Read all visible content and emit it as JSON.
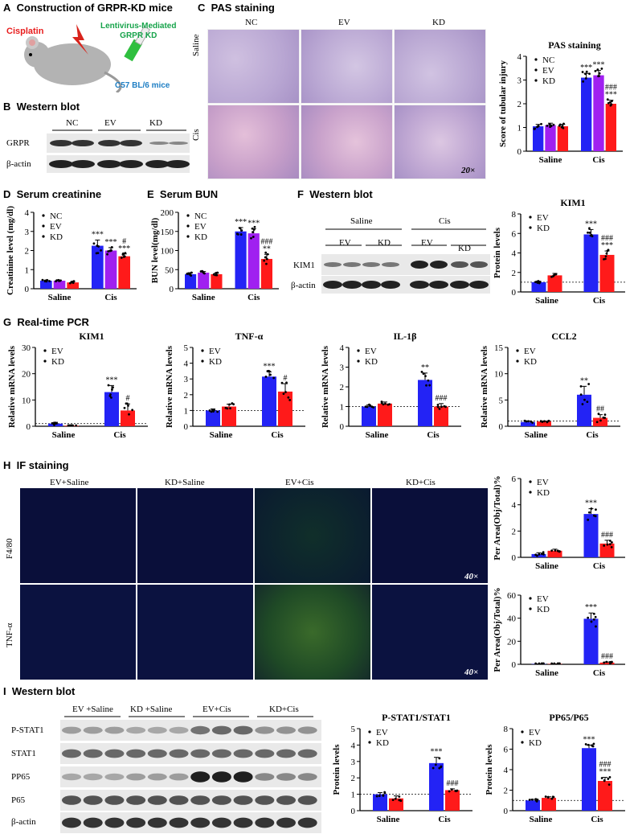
{
  "panelA": {
    "letter": "A",
    "title": "Construction of GRPR-KD mice",
    "cisplatin": "Cisplatin",
    "lenti_line1": "Lentivirus-Mediated",
    "lenti_line2": "GRPR KD",
    "mice": "C57 BL/6 mice"
  },
  "panelB": {
    "letter": "B",
    "title": "Western blot",
    "groups": [
      "NC",
      "EV",
      "KD"
    ],
    "rows": [
      "GRPR",
      "β-actin"
    ]
  },
  "panelC": {
    "letter": "C",
    "title": "PAS staining",
    "cols": [
      "NC",
      "EV",
      "KD"
    ],
    "rows": [
      "Saline",
      "Cis"
    ],
    "magnification": "20×"
  },
  "panelD": {
    "letter": "D",
    "title": "Serum creatinine"
  },
  "panelE": {
    "letter": "E",
    "title": "Serum BUN"
  },
  "panelF": {
    "letter": "F",
    "title": "Western blot",
    "treatments": [
      "Saline",
      "Cis"
    ],
    "groups": [
      "EV",
      "KD",
      "EV",
      "KD"
    ],
    "rows": [
      "KIM1",
      "β-actin"
    ]
  },
  "panelG": {
    "letter": "G",
    "title": "Real-time PCR"
  },
  "panelH": {
    "letter": "H",
    "title": "IF staining",
    "cols": [
      "EV+Saline",
      "KD+Saline",
      "EV+Cis",
      "KD+Cis"
    ],
    "rows": [
      "F4/80",
      "TNF-α"
    ],
    "magnification": "40×"
  },
  "panelI": {
    "letter": "I",
    "title": "Western blot",
    "groups": [
      "EV +Saline",
      "KD +Saline",
      "EV+Cis",
      "KD+Cis"
    ],
    "rows": [
      "P-STAT1",
      "STAT1",
      "PP65",
      "P65",
      "β-actin"
    ]
  },
  "colors": {
    "NC": "#2323f5",
    "EV": "#2323f5",
    "EV_purple": "#a020f0",
    "KD": "#ff1a1a",
    "panelA_title": "#000000",
    "cisplatin": "#e81c1c",
    "lenti": "#16a34a",
    "mice": "#1f7fc4"
  },
  "chart_data": [
    {
      "id": "pas",
      "type": "bar",
      "title": "PAS staining",
      "xlabel": "",
      "ylabel": "Score of tubular injury",
      "categories": [
        "Saline",
        "Cis"
      ],
      "ylim": [
        0,
        4
      ],
      "yticks": [
        0,
        1,
        2,
        3,
        4
      ],
      "series": [
        {
          "name": "NC",
          "values": [
            1.05,
            3.1
          ],
          "err": [
            0.08,
            0.18
          ],
          "color": "#2323f5"
        },
        {
          "name": "EV",
          "values": [
            1.1,
            3.2
          ],
          "err": [
            0.08,
            0.2
          ],
          "color": "#a020f0"
        },
        {
          "name": "KD",
          "values": [
            1.05,
            2.0
          ],
          "err": [
            0.08,
            0.15
          ],
          "color": "#ff1a1a"
        }
      ],
      "annotations": [
        [
          "***"
        ],
        [
          "***"
        ],
        [
          "###",
          "***"
        ]
      ],
      "baseline": null
    },
    {
      "id": "creat",
      "type": "bar",
      "title": "",
      "xlabel": "",
      "ylabel": "Creatinine level (mg/dl)",
      "categories": [
        "Saline",
        "Cis"
      ],
      "ylim": [
        0,
        4
      ],
      "yticks": [
        0,
        1,
        2,
        3,
        4
      ],
      "series": [
        {
          "name": "NC",
          "values": [
            0.42,
            2.25
          ],
          "err": [
            0.03,
            0.3
          ],
          "color": "#2323f5"
        },
        {
          "name": "EV",
          "values": [
            0.42,
            2.0
          ],
          "err": [
            0.03,
            0.15
          ],
          "color": "#a020f0"
        },
        {
          "name": "KD",
          "values": [
            0.33,
            1.7
          ],
          "err": [
            0.05,
            0.12
          ],
          "color": "#ff1a1a"
        }
      ],
      "annotations": [
        [
          "***"
        ],
        [
          "***"
        ],
        [
          "#",
          "***"
        ]
      ],
      "baseline": null
    },
    {
      "id": "bun",
      "type": "bar",
      "title": "",
      "xlabel": "",
      "ylabel": "BUN level(mg/dl)",
      "categories": [
        "Saline",
        "Cis"
      ],
      "ylim": [
        0,
        200
      ],
      "yticks": [
        0,
        50,
        100,
        150,
        200
      ],
      "series": [
        {
          "name": "NC",
          "values": [
            38,
            150
          ],
          "err": [
            4,
            10
          ],
          "color": "#2323f5"
        },
        {
          "name": "EV",
          "values": [
            42,
            145
          ],
          "err": [
            3,
            12
          ],
          "color": "#a020f0"
        },
        {
          "name": "KD",
          "values": [
            38,
            78
          ],
          "err": [
            3,
            12
          ],
          "color": "#ff1a1a"
        }
      ],
      "annotations": [
        [
          "***"
        ],
        [
          "***"
        ],
        [
          "###",
          "**"
        ]
      ],
      "baseline": null
    },
    {
      "id": "kim1wb",
      "type": "bar",
      "title": "KIM1",
      "xlabel": "",
      "ylabel": "Protein levels",
      "categories": [
        "Saline",
        "Cis"
      ],
      "ylim": [
        0,
        8
      ],
      "yticks": [
        0,
        2,
        4,
        6,
        8
      ],
      "series": [
        {
          "name": "EV",
          "values": [
            1.0,
            5.9
          ],
          "err": [
            0.1,
            0.5
          ],
          "color": "#2323f5"
        },
        {
          "name": "KD",
          "values": [
            1.7,
            3.8
          ],
          "err": [
            0.2,
            0.4
          ],
          "color": "#ff1a1a"
        }
      ],
      "annotations": [
        [
          "***"
        ],
        [
          "###",
          "***"
        ]
      ],
      "baseline": 1
    },
    {
      "id": "kim1pcr",
      "type": "bar",
      "title": "KIM1",
      "xlabel": "",
      "ylabel": "Relative mRNA levels",
      "categories": [
        "Saline",
        "Cis"
      ],
      "ylim": [
        0,
        30
      ],
      "yticks": [
        0,
        10,
        20,
        30
      ],
      "series": [
        {
          "name": "EV",
          "values": [
            1.0,
            13
          ],
          "err": [
            0.5,
            2.5
          ],
          "color": "#2323f5"
        },
        {
          "name": "KD",
          "values": [
            0.2,
            6
          ],
          "err": [
            0.1,
            2.5
          ],
          "color": "#ff1a1a"
        }
      ],
      "annotations": [
        [
          "***"
        ],
        [
          "#"
        ]
      ],
      "baseline": 1
    },
    {
      "id": "tnfpcr",
      "type": "bar",
      "title": "TNF-α",
      "xlabel": "",
      "ylabel": "Relative mRNA levels",
      "categories": [
        "Saline",
        "Cis"
      ],
      "ylim": [
        0,
        5
      ],
      "yticks": [
        0,
        1,
        2,
        3,
        4,
        5
      ],
      "series": [
        {
          "name": "EV",
          "values": [
            1.0,
            3.15
          ],
          "err": [
            0.1,
            0.3
          ],
          "color": "#2323f5"
        },
        {
          "name": "KD",
          "values": [
            1.25,
            2.2
          ],
          "err": [
            0.15,
            0.5
          ],
          "color": "#ff1a1a"
        }
      ],
      "annotations": [
        [
          "***"
        ],
        [
          "#"
        ]
      ],
      "baseline": 1
    },
    {
      "id": "il1b",
      "type": "bar",
      "title": "IL-1β",
      "xlabel": "",
      "ylabel": "Relative mRNA levels",
      "categories": [
        "Saline",
        "Cis"
      ],
      "ylim": [
        0,
        4
      ],
      "yticks": [
        0,
        1,
        2,
        3,
        4
      ],
      "series": [
        {
          "name": "EV",
          "values": [
            1.0,
            2.35
          ],
          "err": [
            0.08,
            0.35
          ],
          "color": "#2323f5"
        },
        {
          "name": "KD",
          "values": [
            1.15,
            1.0
          ],
          "err": [
            0.08,
            0.15
          ],
          "color": "#ff1a1a"
        }
      ],
      "annotations": [
        [
          "**"
        ],
        [
          "###"
        ]
      ],
      "baseline": 1
    },
    {
      "id": "ccl2",
      "type": "bar",
      "title": "CCL2",
      "xlabel": "",
      "ylabel": "Relative mRNA levels",
      "categories": [
        "Saline",
        "Cis"
      ],
      "ylim": [
        0,
        15
      ],
      "yticks": [
        0,
        5,
        10,
        15
      ],
      "series": [
        {
          "name": "EV",
          "values": [
            0.8,
            6.0
          ],
          "err": [
            0.2,
            1.6
          ],
          "color": "#2323f5"
        },
        {
          "name": "KD",
          "values": [
            0.9,
            1.6
          ],
          "err": [
            0.1,
            0.6
          ],
          "color": "#ff1a1a"
        }
      ],
      "annotations": [
        [
          "**"
        ],
        [
          "##"
        ]
      ],
      "baseline": 1
    },
    {
      "id": "f480",
      "type": "bar",
      "title": "",
      "xlabel": "",
      "ylabel": "Per Area(Obj/Total)%",
      "categories": [
        "Saline",
        "Cis"
      ],
      "ylim": [
        0,
        6
      ],
      "yticks": [
        0,
        2,
        4,
        6
      ],
      "series": [
        {
          "name": "EV",
          "values": [
            0.25,
            3.3
          ],
          "err": [
            0.1,
            0.4
          ],
          "color": "#2323f5"
        },
        {
          "name": "KD",
          "values": [
            0.5,
            1.05
          ],
          "err": [
            0.12,
            0.25
          ],
          "color": "#ff1a1a"
        }
      ],
      "annotations": [
        [
          "***"
        ],
        [
          "###"
        ]
      ],
      "baseline": null
    },
    {
      "id": "tnfif",
      "type": "bar",
      "title": "",
      "xlabel": "",
      "ylabel": "Per Area(Obj/Total)%",
      "categories": [
        "Saline",
        "Cis"
      ],
      "ylim": [
        0,
        60
      ],
      "yticks": [
        0,
        20,
        40,
        60
      ],
      "series": [
        {
          "name": "EV",
          "values": [
            0.3,
            39.5
          ],
          "err": [
            0.1,
            5
          ],
          "color": "#2323f5"
        },
        {
          "name": "KD",
          "values": [
            0.3,
            1.5
          ],
          "err": [
            0.1,
            0.5
          ],
          "color": "#ff1a1a"
        }
      ],
      "annotations": [
        [
          "***"
        ],
        [
          "###"
        ]
      ],
      "baseline": null
    },
    {
      "id": "pstat1",
      "type": "bar",
      "title": "P-STAT1/STAT1",
      "xlabel": "",
      "ylabel": "Protein levels",
      "categories": [
        "Saline",
        "Cis"
      ],
      "ylim": [
        0,
        5
      ],
      "yticks": [
        0,
        1,
        2,
        3,
        4,
        5
      ],
      "series": [
        {
          "name": "EV",
          "values": [
            1.0,
            2.9
          ],
          "err": [
            0.1,
            0.35
          ],
          "color": "#2323f5"
        },
        {
          "name": "KD",
          "values": [
            0.75,
            1.25
          ],
          "err": [
            0.15,
            0.08
          ],
          "color": "#ff1a1a"
        }
      ],
      "annotations": [
        [
          "***"
        ],
        [
          "###"
        ]
      ],
      "baseline": 1
    },
    {
      "id": "pp65",
      "type": "bar",
      "title": "PP65/P65",
      "xlabel": "",
      "ylabel": "Protein levels",
      "categories": [
        "Saline",
        "Cis"
      ],
      "ylim": [
        0,
        8
      ],
      "yticks": [
        0,
        2,
        4,
        6,
        8
      ],
      "series": [
        {
          "name": "EV",
          "values": [
            1.0,
            6.1
          ],
          "err": [
            0.1,
            0.3
          ],
          "color": "#2323f5"
        },
        {
          "name": "KD",
          "values": [
            1.25,
            2.9
          ],
          "err": [
            0.1,
            0.35
          ],
          "color": "#ff1a1a"
        }
      ],
      "annotations": [
        [
          "***"
        ],
        [
          "###",
          "***"
        ]
      ],
      "baseline": 1
    }
  ]
}
